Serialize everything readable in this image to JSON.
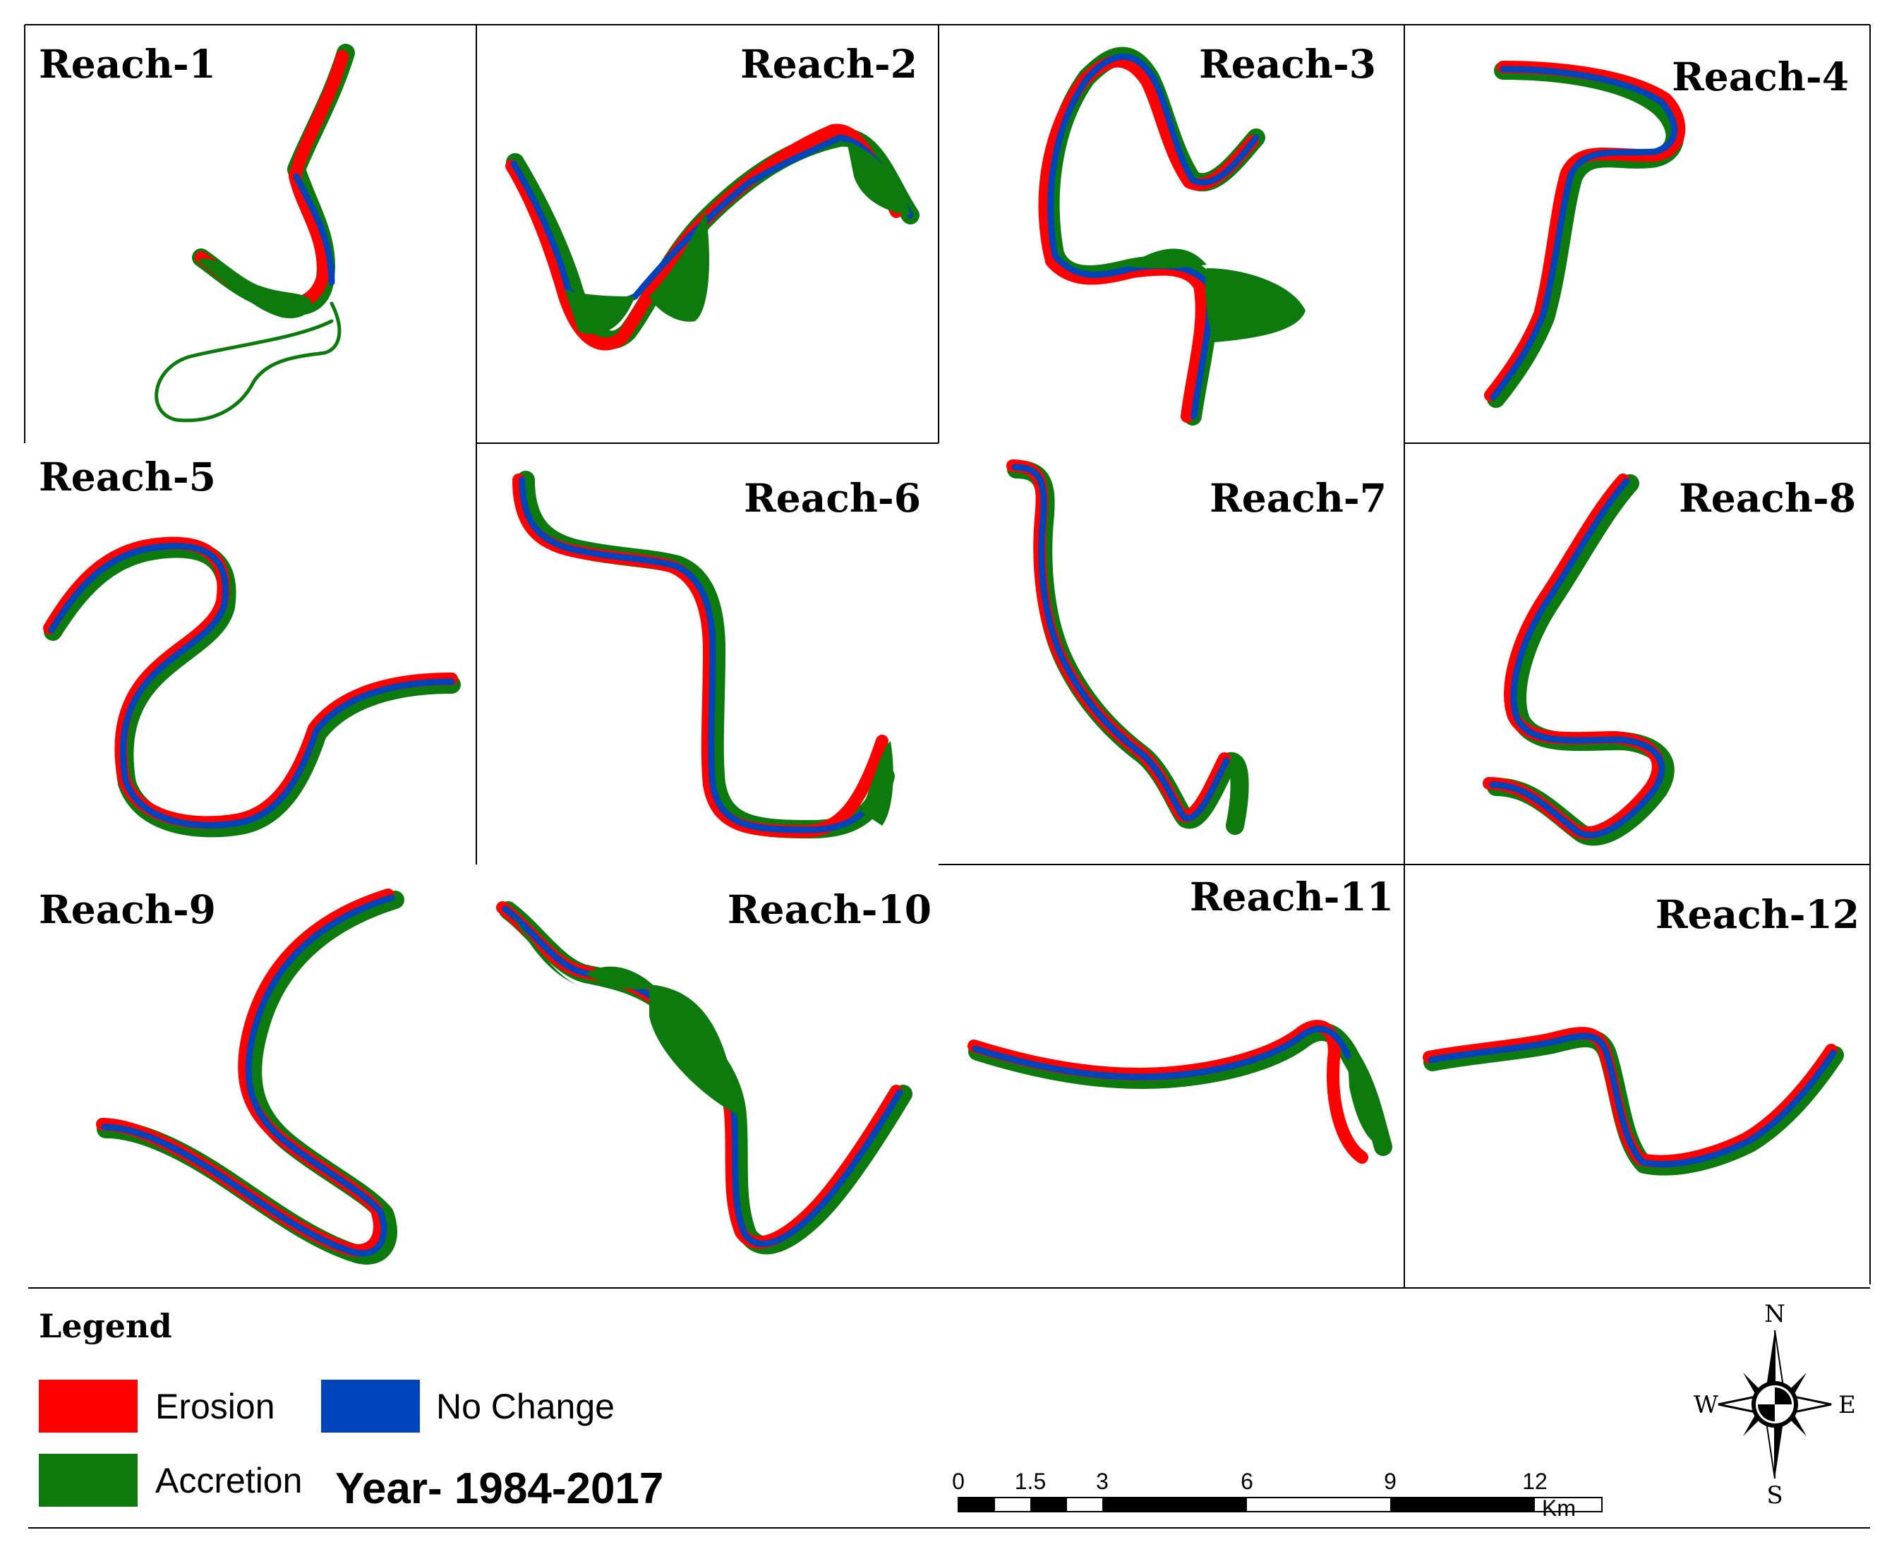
{
  "reaches": [
    {
      "label": "Reach-1"
    },
    {
      "label": "Reach-2"
    },
    {
      "label": "Reach-3"
    },
    {
      "label": "Reach-4"
    },
    {
      "label": "Reach-5"
    },
    {
      "label": "Reach-6"
    },
    {
      "label": "Reach-7"
    },
    {
      "label": "Reach-8"
    },
    {
      "label": "Reach-9"
    },
    {
      "label": "Reach-10"
    },
    {
      "label": "Reach-11"
    },
    {
      "label": "Reach-12"
    }
  ],
  "legend": {
    "title": "Legend",
    "items": {
      "erosion": {
        "label": "Erosion",
        "color": "#ff0000"
      },
      "no_change": {
        "label": "No Change",
        "color": "#0044bb"
      },
      "accretion": {
        "label": "Accretion",
        "color": "#0c7a0c"
      }
    }
  },
  "year": "Year- 1984-2017",
  "scale_bar": {
    "ticks": [
      "0",
      "1.5",
      "3",
      "6",
      "9",
      "12"
    ],
    "unit": "Km"
  },
  "compass": {
    "north": "N",
    "south": "S",
    "east": "E",
    "west": "W"
  }
}
